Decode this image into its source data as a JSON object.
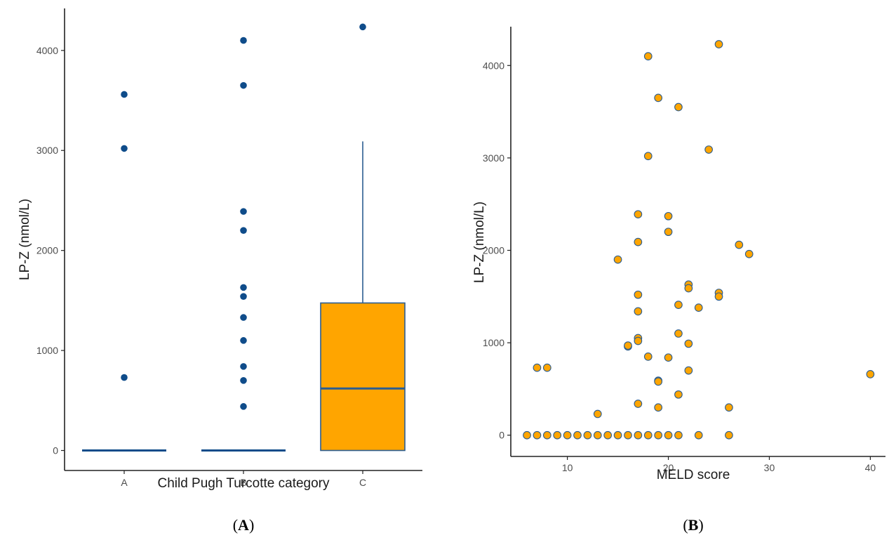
{
  "colors": {
    "navy": "#0f4c8a",
    "box_stroke": "#2b5d91",
    "orange": "#ffa500",
    "axis": "#222222"
  },
  "chart_data": [
    {
      "type": "box",
      "panel_label": "A",
      "xlabel": "Child Pugh Turcotte category",
      "ylabel": "LP-Z (nmol/L)",
      "categories": [
        "A",
        "B",
        "C"
      ],
      "ylim": [
        -200,
        4420
      ],
      "yticks": [
        0,
        1000,
        2000,
        3000,
        4000
      ],
      "grid": false,
      "boxes": [
        {
          "category": "A",
          "q1": 0,
          "median": 0,
          "q3": 0,
          "whisker_low": 0,
          "whisker_high": 0,
          "fill": "#0f4c8a"
        },
        {
          "category": "B",
          "q1": 0,
          "median": 0,
          "q3": 0,
          "whisker_low": 0,
          "whisker_high": 0,
          "fill": "#0f4c8a"
        },
        {
          "category": "C",
          "q1": 0,
          "median": 620,
          "q3": 1475,
          "whisker_low": 0,
          "whisker_high": 3090,
          "fill": "#ffa500"
        }
      ],
      "outliers": [
        {
          "category": "A",
          "values": [
            3560,
            3020,
            730
          ]
        },
        {
          "category": "B",
          "values": [
            4100,
            3650,
            2390,
            2200,
            1630,
            1540,
            1330,
            1100,
            840,
            700,
            440
          ]
        },
        {
          "category": "C",
          "values": [
            4235
          ]
        }
      ]
    },
    {
      "type": "scatter",
      "panel_label": "B",
      "xlabel": "MELD score",
      "ylabel": "LP-Z (nmol/L)",
      "xlim": [
        4.4,
        41.5
      ],
      "ylim": [
        -230,
        4420
      ],
      "xticks": [
        10,
        20,
        30,
        40
      ],
      "yticks": [
        0,
        1000,
        2000,
        3000,
        4000
      ],
      "grid": false,
      "points": [
        {
          "x": 6,
          "y": 0
        },
        {
          "x": 7,
          "y": 0
        },
        {
          "x": 8,
          "y": 0
        },
        {
          "x": 9,
          "y": 0
        },
        {
          "x": 10,
          "y": 0
        },
        {
          "x": 11,
          "y": 0
        },
        {
          "x": 12,
          "y": 0
        },
        {
          "x": 13,
          "y": 0
        },
        {
          "x": 14,
          "y": 0
        },
        {
          "x": 15,
          "y": 0
        },
        {
          "x": 16,
          "y": 0
        },
        {
          "x": 17,
          "y": 0
        },
        {
          "x": 18,
          "y": 0
        },
        {
          "x": 19,
          "y": 0
        },
        {
          "x": 20,
          "y": 0
        },
        {
          "x": 21,
          "y": 0
        },
        {
          "x": 23,
          "y": 0
        },
        {
          "x": 26,
          "y": 0
        },
        {
          "x": 7,
          "y": 730
        },
        {
          "x": 8,
          "y": 730
        },
        {
          "x": 13,
          "y": 230
        },
        {
          "x": 15,
          "y": 1900
        },
        {
          "x": 16,
          "y": 960
        },
        {
          "x": 16,
          "y": 970
        },
        {
          "x": 17,
          "y": 2390
        },
        {
          "x": 17,
          "y": 2090
        },
        {
          "x": 17,
          "y": 1520
        },
        {
          "x": 17,
          "y": 1340
        },
        {
          "x": 17,
          "y": 1050
        },
        {
          "x": 17,
          "y": 1020
        },
        {
          "x": 17,
          "y": 340
        },
        {
          "x": 18,
          "y": 4100
        },
        {
          "x": 18,
          "y": 3020
        },
        {
          "x": 18,
          "y": 850
        },
        {
          "x": 19,
          "y": 3650
        },
        {
          "x": 19,
          "y": 590
        },
        {
          "x": 19,
          "y": 580
        },
        {
          "x": 19,
          "y": 300
        },
        {
          "x": 20,
          "y": 2370
        },
        {
          "x": 20,
          "y": 2200
        },
        {
          "x": 20,
          "y": 840
        },
        {
          "x": 21,
          "y": 3550
        },
        {
          "x": 21,
          "y": 1410
        },
        {
          "x": 21,
          "y": 1100
        },
        {
          "x": 21,
          "y": 440
        },
        {
          "x": 22,
          "y": 1630
        },
        {
          "x": 22,
          "y": 1590
        },
        {
          "x": 22,
          "y": 990
        },
        {
          "x": 22,
          "y": 700
        },
        {
          "x": 23,
          "y": 1380
        },
        {
          "x": 24,
          "y": 3090
        },
        {
          "x": 25,
          "y": 4230
        },
        {
          "x": 25,
          "y": 1540
        },
        {
          "x": 25,
          "y": 1500
        },
        {
          "x": 26,
          "y": 300
        },
        {
          "x": 27,
          "y": 2060
        },
        {
          "x": 28,
          "y": 1960
        },
        {
          "x": 40,
          "y": 660
        }
      ]
    }
  ]
}
